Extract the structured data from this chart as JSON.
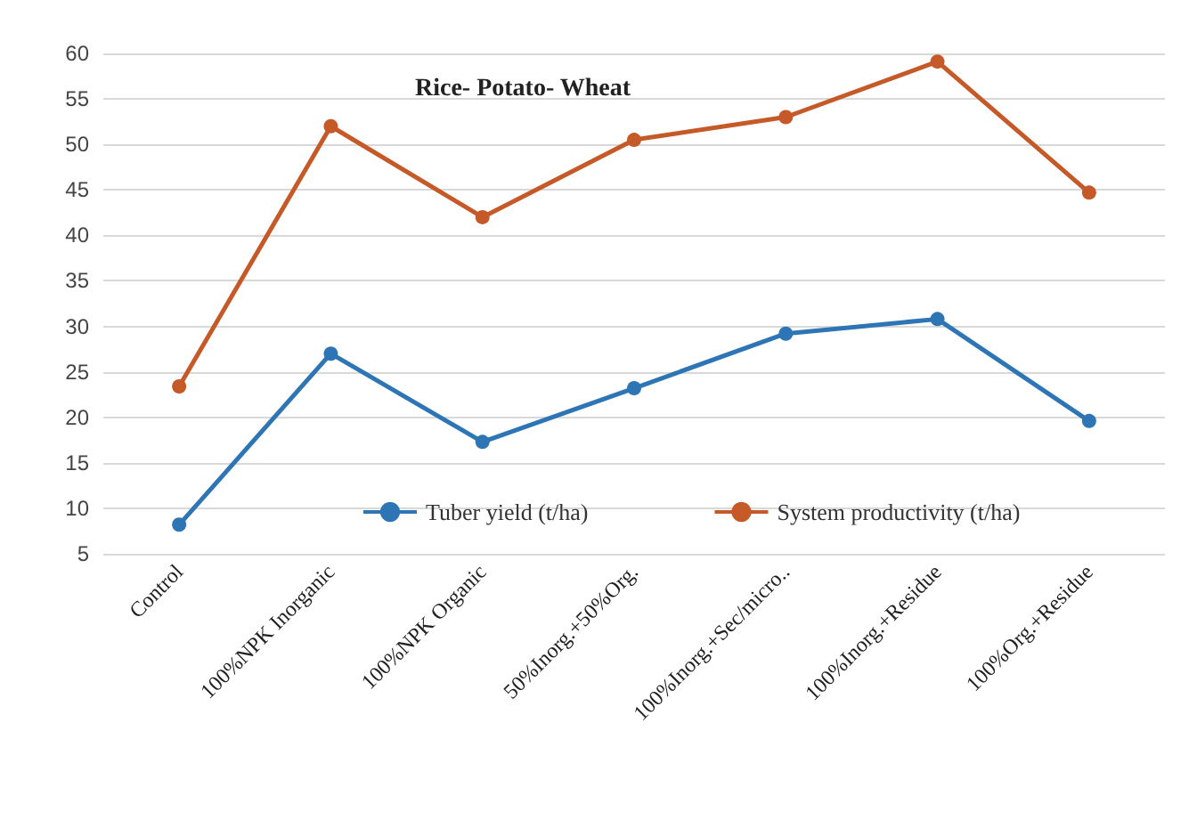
{
  "chart_data": {
    "type": "line",
    "title": "Rice- Potato- Wheat",
    "categories": [
      "Control",
      "100%NPK Inorganic",
      "100%NPK Organic",
      "50%Inorg.+50%Org.",
      "100%Inorg.+Sec/micro..",
      "100%Inorg.+Residue",
      "100%Org.+Residue"
    ],
    "series": [
      {
        "name": "Tuber yield (t/ha)",
        "color": "#2e75b6",
        "values": [
          8.2,
          27,
          17.3,
          23.2,
          29.2,
          30.8,
          19.6
        ]
      },
      {
        "name": "System productivity (t/ha)",
        "color": "#c55a28",
        "values": [
          23.4,
          52,
          42,
          50.5,
          53,
          59.1,
          44.7
        ]
      }
    ],
    "ylim": [
      5,
      60
    ],
    "yticks": [
      5,
      10,
      15,
      20,
      25,
      30,
      35,
      40,
      45,
      50,
      55,
      60
    ],
    "grid": "y",
    "legend": "bottom",
    "marker": "circle"
  }
}
